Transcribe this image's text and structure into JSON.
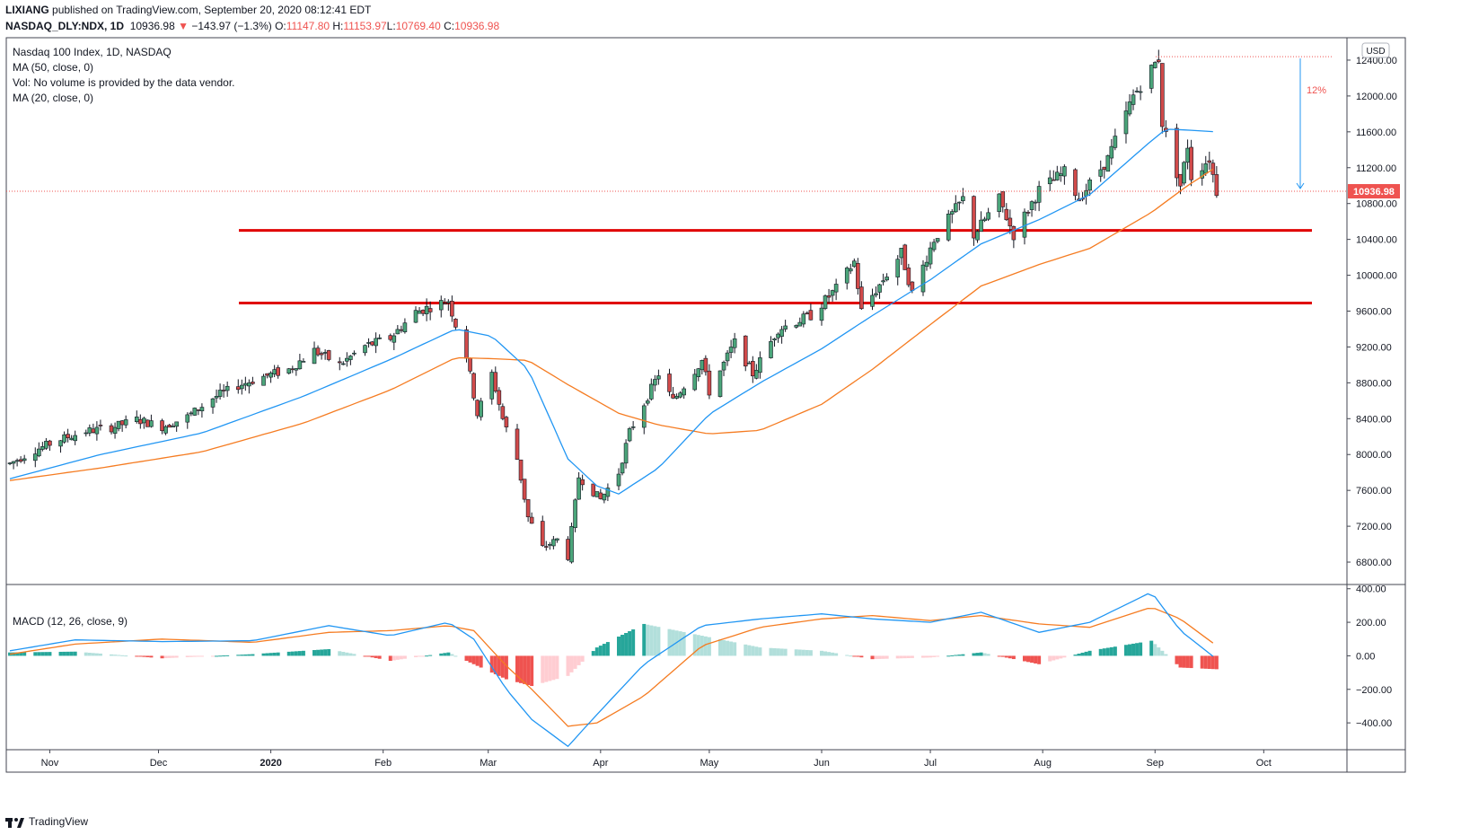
{
  "header": {
    "author": "LIXIANG",
    "published_text": "published on TradingView.com, September 20, 2020 08:12:41 EDT",
    "symbol": "NASDAQ_DLY:NDX, 1D",
    "last": "10936.98",
    "change": "−143.97 (−1.3%)",
    "o_label": "O:",
    "o_value": "11147.80",
    "h_label": "H:",
    "h_value": "11153.97",
    "l_label": "L:",
    "l_value": "10769.40",
    "c_label": "C:",
    "c_value": "10936.98"
  },
  "legend": {
    "title": "Nasdaq 100 Index, 1D, NASDAQ",
    "ma50": "MA (50, close, 0)",
    "vol": "Vol: No volume is provided by the data vendor.",
    "ma20": "MA (20, close, 0)",
    "macd": "MACD (12, 26, close, 9)"
  },
  "currency": "USD",
  "price_tag": "10936.98",
  "measure_label": "12%",
  "footer": {
    "brand": "TradingView"
  },
  "colors": {
    "up": "#26a69a",
    "down": "#ef5350",
    "up_body": "#4ba57a",
    "down_body": "#d14a4a",
    "ma20": "#2196f3",
    "ma50": "#f57c22",
    "support": "#e00000",
    "macd": "#2196f3",
    "signal": "#f57c22",
    "hist_up_strong": "#26a69a",
    "hist_up_weak": "#b2dfdb",
    "hist_down_strong": "#ef5350",
    "hist_down_weak": "#ffcdd2"
  },
  "chart_data": [
    {
      "type": "candlestick",
      "title": "Nasdaq 100 Index, 1D, NASDAQ",
      "x_labels": [
        "Nov",
        "Dec",
        "2020",
        "Feb",
        "Mar",
        "Apr",
        "May",
        "Jun",
        "Jul",
        "Aug",
        "Sep",
        "Oct"
      ],
      "y_ticks": [
        6800,
        7200,
        7600,
        8000,
        8400,
        8800,
        9200,
        9600,
        10000,
        10400,
        10800,
        11200,
        11600,
        12000,
        12400
      ],
      "y_tick_labels": [
        "6800.00",
        "7200.00",
        "7600.00",
        "8000.00",
        "8400.00",
        "8800.00",
        "9200.00",
        "9600.00",
        "10000.00",
        "10400.00",
        "10800.00",
        "11200.00",
        "11600.00",
        "12000.00",
        "12400.00"
      ],
      "ylim": [
        6560,
        12650
      ],
      "support_levels": [
        10500,
        9690
      ],
      "last_price": 10936.98,
      "high_marker": 12439,
      "measure_percent": "12%",
      "series_names": [
        "MA (50, close, 0)",
        "MA (20, close, 0)"
      ],
      "price_path": [
        [
          "2019-10-21",
          7900
        ],
        [
          "2019-10-28",
          8050
        ],
        [
          "2019-11-04",
          8170
        ],
        [
          "2019-11-11",
          8260
        ],
        [
          "2019-11-18",
          8300
        ],
        [
          "2019-11-25",
          8390
        ],
        [
          "2019-12-02",
          8310
        ],
        [
          "2019-12-09",
          8420
        ],
        [
          "2019-12-16",
          8630
        ],
        [
          "2019-12-23",
          8770
        ],
        [
          "2019-12-30",
          8870
        ],
        [
          "2020-01-06",
          8950
        ],
        [
          "2020-01-13",
          9160
        ],
        [
          "2020-01-20",
          9000
        ],
        [
          "2020-01-27",
          9210
        ],
        [
          "2020-02-03",
          9300
        ],
        [
          "2020-02-10",
          9590
        ],
        [
          "2020-02-19",
          9720
        ],
        [
          "2020-02-21",
          9450
        ],
        [
          "2020-02-24",
          9100
        ],
        [
          "2020-02-27",
          8450
        ],
        [
          "2020-03-02",
          8900
        ],
        [
          "2020-03-05",
          8400
        ],
        [
          "2020-03-09",
          7950
        ],
        [
          "2020-03-12",
          7300
        ],
        [
          "2020-03-16",
          6960
        ],
        [
          "2020-03-20",
          7050
        ],
        [
          "2020-03-23",
          6860
        ],
        [
          "2020-03-26",
          7750
        ],
        [
          "2020-04-01",
          7500
        ],
        [
          "2020-04-06",
          7800
        ],
        [
          "2020-04-09",
          8250
        ],
        [
          "2020-04-14",
          8650
        ],
        [
          "2020-04-17",
          8900
        ],
        [
          "2020-04-21",
          8600
        ],
        [
          "2020-04-29",
          9050
        ],
        [
          "2020-05-01",
          8700
        ],
        [
          "2020-05-08",
          9250
        ],
        [
          "2020-05-13",
          8900
        ],
        [
          "2020-05-20",
          9400
        ],
        [
          "2020-05-29",
          9550
        ],
        [
          "2020-06-05",
          9850
        ],
        [
          "2020-06-10",
          10150
        ],
        [
          "2020-06-12",
          9600
        ],
        [
          "2020-06-18",
          9950
        ],
        [
          "2020-06-23",
          10250
        ],
        [
          "2020-06-26",
          9800
        ],
        [
          "2020-07-02",
          10400
        ],
        [
          "2020-07-10",
          10850
        ],
        [
          "2020-07-13",
          10450
        ],
        [
          "2020-07-20",
          10850
        ],
        [
          "2020-07-24",
          10450
        ],
        [
          "2020-07-31",
          10950
        ],
        [
          "2020-08-07",
          11150
        ],
        [
          "2020-08-11",
          10850
        ],
        [
          "2020-08-19",
          11300
        ],
        [
          "2020-08-26",
          12000
        ],
        [
          "2020-09-02",
          12420
        ],
        [
          "2020-09-03",
          11700
        ],
        [
          "2020-09-08",
          11000
        ],
        [
          "2020-09-10",
          11450
        ],
        [
          "2020-09-11",
          11100
        ],
        [
          "2020-09-16",
          11300
        ],
        [
          "2020-09-18",
          10937
        ]
      ],
      "ma20_path": [
        [
          "2019-10-21",
          7730
        ],
        [
          "2019-11-15",
          8000
        ],
        [
          "2019-12-13",
          8240
        ],
        [
          "2020-01-10",
          8650
        ],
        [
          "2020-02-03",
          9060
        ],
        [
          "2020-02-21",
          9400
        ],
        [
          "2020-03-02",
          9320
        ],
        [
          "2020-03-12",
          8950
        ],
        [
          "2020-03-23",
          7950
        ],
        [
          "2020-03-31",
          7650
        ],
        [
          "2020-04-06",
          7560
        ],
        [
          "2020-04-17",
          7850
        ],
        [
          "2020-05-01",
          8450
        ],
        [
          "2020-05-15",
          8800
        ],
        [
          "2020-06-01",
          9180
        ],
        [
          "2020-06-15",
          9550
        ],
        [
          "2020-07-01",
          9950
        ],
        [
          "2020-07-15",
          10350
        ],
        [
          "2020-07-31",
          10620
        ],
        [
          "2020-08-14",
          10900
        ],
        [
          "2020-08-31",
          11500
        ],
        [
          "2020-09-04",
          11630
        ],
        [
          "2020-09-10",
          11620
        ],
        [
          "2020-09-18",
          11600
        ]
      ],
      "ma50_path": [
        [
          "2019-10-21",
          7710
        ],
        [
          "2019-11-15",
          7850
        ],
        [
          "2019-12-13",
          8030
        ],
        [
          "2020-01-10",
          8350
        ],
        [
          "2020-02-03",
          8720
        ],
        [
          "2020-02-21",
          9080
        ],
        [
          "2020-03-02",
          9070
        ],
        [
          "2020-03-12",
          9050
        ],
        [
          "2020-03-23",
          8780
        ],
        [
          "2020-04-06",
          8460
        ],
        [
          "2020-04-17",
          8330
        ],
        [
          "2020-05-01",
          8230
        ],
        [
          "2020-05-15",
          8270
        ],
        [
          "2020-06-01",
          8560
        ],
        [
          "2020-06-15",
          8950
        ],
        [
          "2020-07-01",
          9450
        ],
        [
          "2020-07-15",
          9880
        ],
        [
          "2020-07-31",
          10120
        ],
        [
          "2020-08-14",
          10300
        ],
        [
          "2020-08-31",
          10700
        ],
        [
          "2020-09-10",
          11000
        ],
        [
          "2020-09-18",
          11210
        ]
      ]
    },
    {
      "type": "macd",
      "title": "MACD (12, 26, close, 9)",
      "y_ticks": [
        400,
        200,
        0,
        -200,
        -400
      ],
      "y_tick_labels": [
        "400.00",
        "200.00",
        "0.00",
        "−200.00",
        "−400.00"
      ],
      "ylim": [
        -560,
        420
      ],
      "macd_path": [
        [
          "2019-10-21",
          30
        ],
        [
          "2019-11-08",
          95
        ],
        [
          "2019-12-02",
          85
        ],
        [
          "2019-12-27",
          90
        ],
        [
          "2020-01-17",
          180
        ],
        [
          "2020-02-03",
          120
        ],
        [
          "2020-02-19",
          200
        ],
        [
          "2020-02-26",
          100
        ],
        [
          "2020-03-06",
          -200
        ],
        [
          "2020-03-13",
          -380
        ],
        [
          "2020-03-23",
          -540
        ],
        [
          "2020-03-31",
          -350
        ],
        [
          "2020-04-13",
          -50
        ],
        [
          "2020-04-29",
          180
        ],
        [
          "2020-05-15",
          220
        ],
        [
          "2020-06-01",
          250
        ],
        [
          "2020-06-15",
          220
        ],
        [
          "2020-07-01",
          200
        ],
        [
          "2020-07-15",
          260
        ],
        [
          "2020-07-31",
          140
        ],
        [
          "2020-08-14",
          200
        ],
        [
          "2020-08-31",
          380
        ],
        [
          "2020-09-08",
          150
        ],
        [
          "2020-09-18",
          -20
        ]
      ],
      "signal_path": [
        [
          "2019-10-21",
          10
        ],
        [
          "2019-11-08",
          70
        ],
        [
          "2019-12-02",
          100
        ],
        [
          "2019-12-27",
          80
        ],
        [
          "2020-01-17",
          140
        ],
        [
          "2020-02-03",
          150
        ],
        [
          "2020-02-19",
          180
        ],
        [
          "2020-02-26",
          150
        ],
        [
          "2020-03-06",
          -60
        ],
        [
          "2020-03-13",
          -200
        ],
        [
          "2020-03-23",
          -420
        ],
        [
          "2020-03-31",
          -400
        ],
        [
          "2020-04-13",
          -240
        ],
        [
          "2020-04-29",
          60
        ],
        [
          "2020-05-15",
          170
        ],
        [
          "2020-06-01",
          220
        ],
        [
          "2020-06-15",
          240
        ],
        [
          "2020-07-01",
          210
        ],
        [
          "2020-07-15",
          240
        ],
        [
          "2020-07-31",
          190
        ],
        [
          "2020-08-14",
          170
        ],
        [
          "2020-08-31",
          290
        ],
        [
          "2020-09-08",
          220
        ],
        [
          "2020-09-18",
          60
        ]
      ]
    }
  ]
}
